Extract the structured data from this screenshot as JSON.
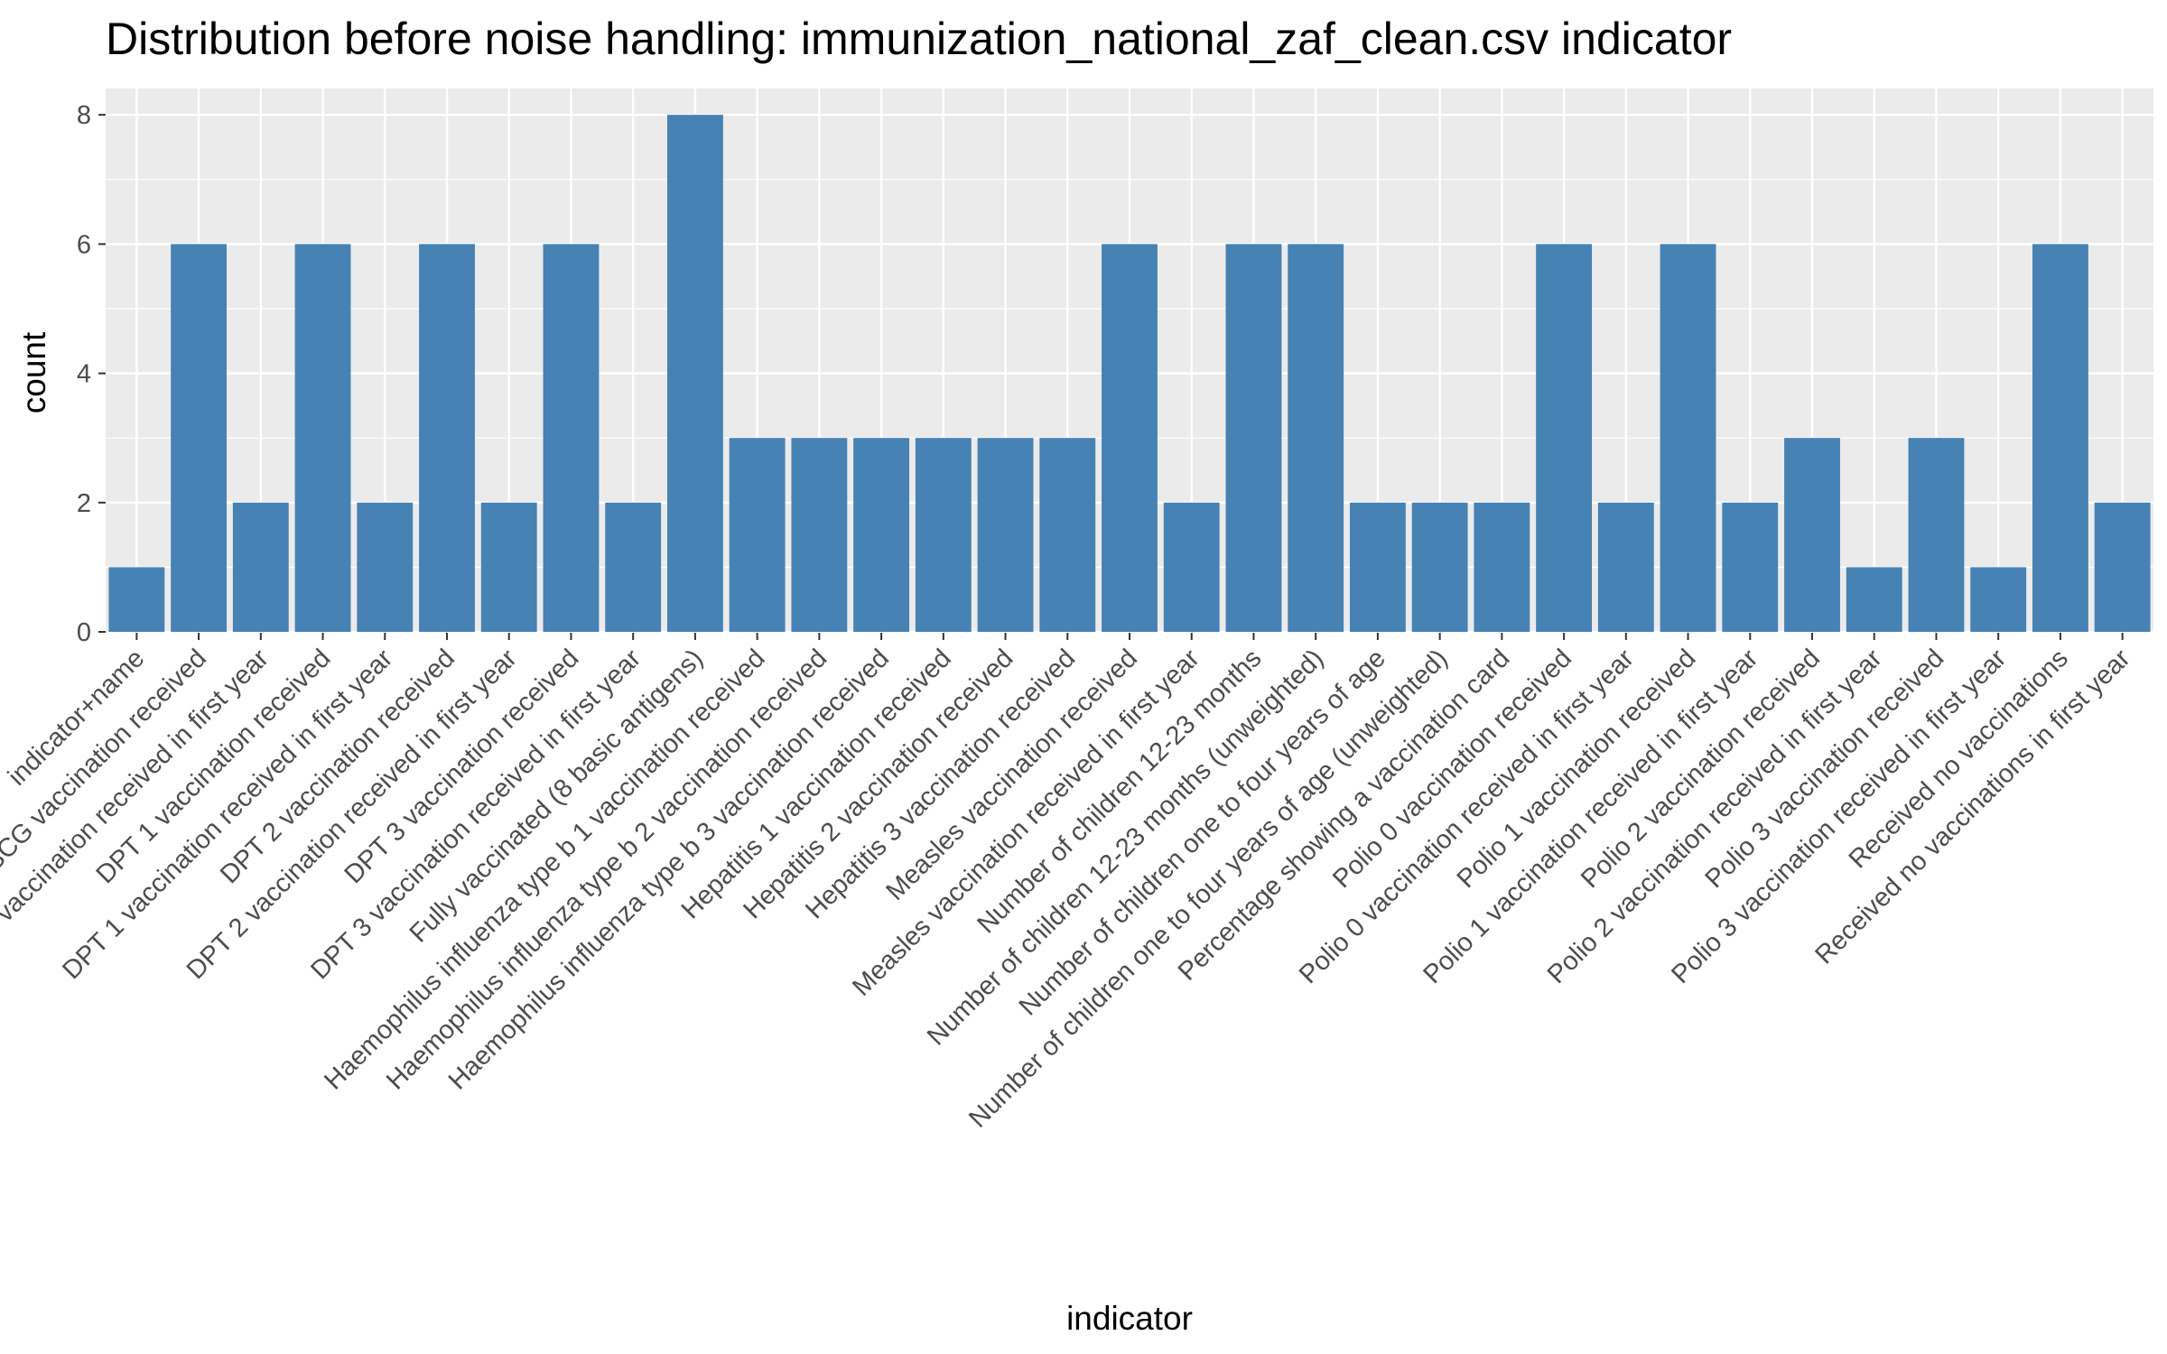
{
  "chart_data": {
    "type": "bar",
    "title": "Distribution before noise handling: immunization_national_zaf_clean.csv indicator",
    "xlabel": "indicator",
    "ylabel": "count",
    "ylim": [
      0,
      8.5
    ],
    "yticks": [
      0,
      2,
      4,
      6,
      8
    ],
    "grid": true,
    "bar_color": "#4682B4",
    "panel_color": "#EBEBEB",
    "grid_color": "#FFFFFF",
    "categories": [
      "indicator+name",
      "BCG vaccination received",
      "BCG vaccination received in first year",
      "DPT 1 vaccination received",
      "DPT 1 vaccination received in first year",
      "DPT 2 vaccination received",
      "DPT 2 vaccination received in first year",
      "DPT 3 vaccination received",
      "DPT 3 vaccination received in first year",
      "Fully vaccinated (8 basic antigens)",
      "Haemophilus influenza type b 1 vaccination received",
      "Haemophilus influenza type b 2 vaccination received",
      "Haemophilus influenza type b 3 vaccination received",
      "Hepatitis 1 vaccination received",
      "Hepatitis 2 vaccination received",
      "Hepatitis 3 vaccination received",
      "Measles vaccination received",
      "Measles vaccination received in first year",
      "Number of children 12-23 months",
      "Number of children 12-23 months (unweighted)",
      "Number of children one to four years of age",
      "Number of children one to four years of age (unweighted)",
      "Percentage showing a vaccination card",
      "Polio 0 vaccination received",
      "Polio 0 vaccination received in first year",
      "Polio 1 vaccination received",
      "Polio 1 vaccination received in first year",
      "Polio 2 vaccination received",
      "Polio 2 vaccination received in first year",
      "Polio 3 vaccination received",
      "Polio 3 vaccination received in first year",
      "Received no vaccinations",
      "Received no vaccinations in first year"
    ],
    "values": [
      1,
      6,
      2,
      6,
      2,
      6,
      2,
      6,
      2,
      8,
      3,
      3,
      3,
      3,
      3,
      3,
      6,
      2,
      6,
      6,
      2,
      2,
      2,
      6,
      2,
      6,
      2,
      3,
      1,
      3,
      1,
      6,
      2
    ]
  }
}
